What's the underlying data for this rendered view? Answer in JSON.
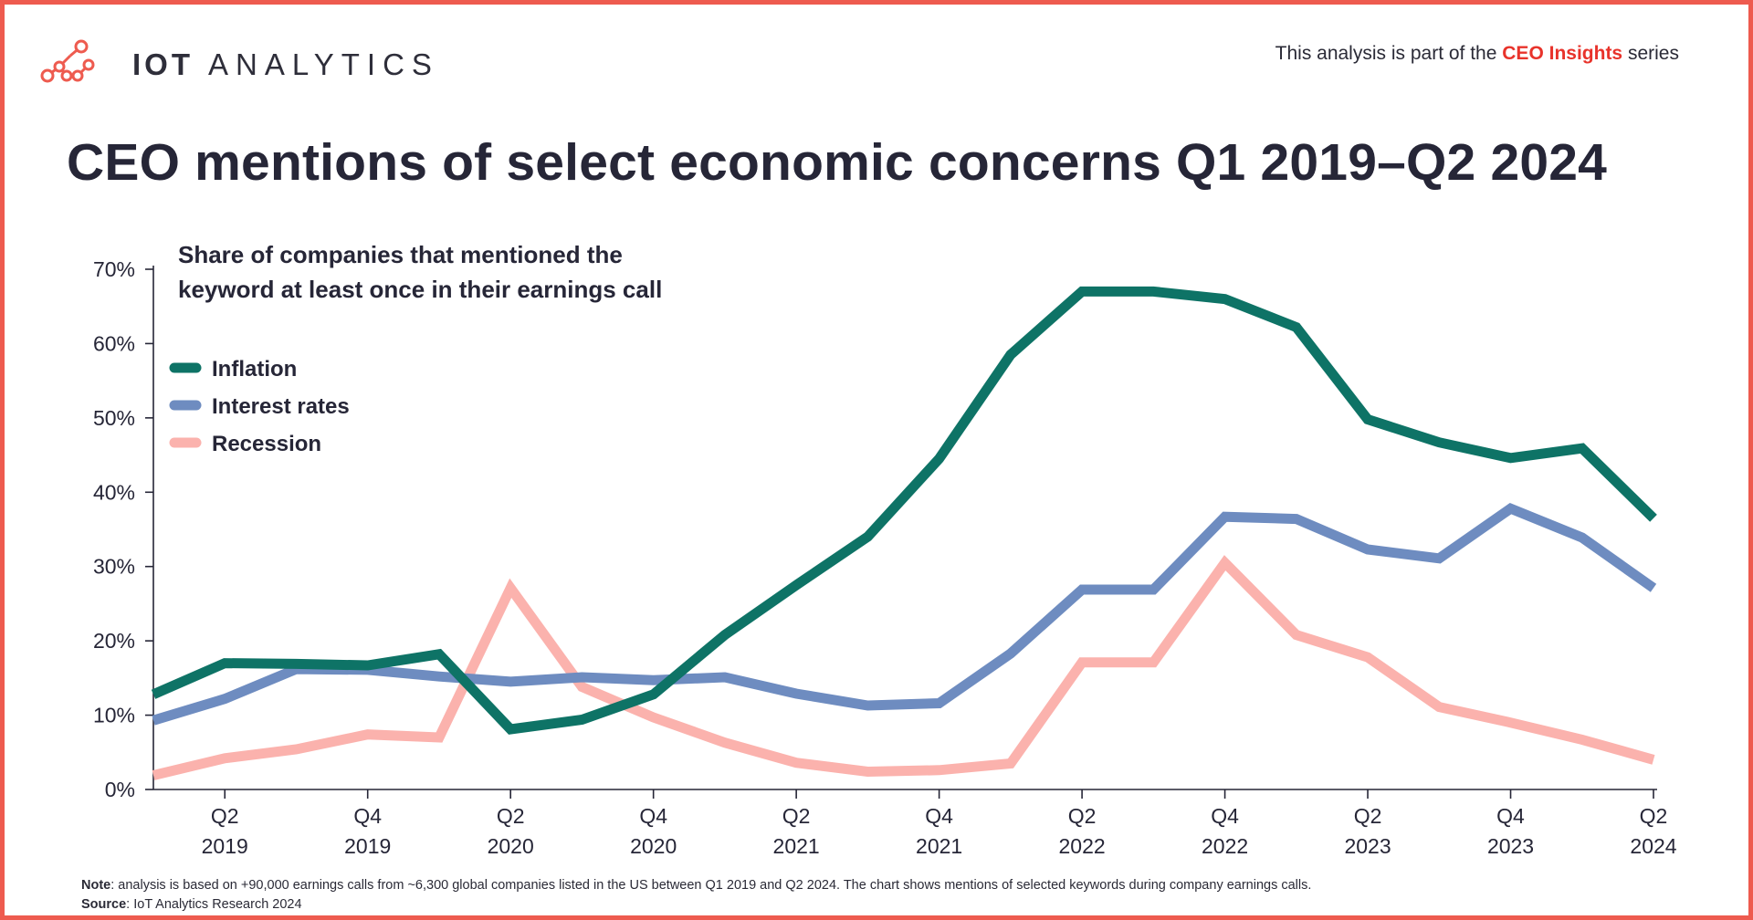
{
  "header": {
    "logo_bold": "IOT",
    "logo_light": "ANALYTICS",
    "series_prefix": "This analysis is part of the",
    "series_highlight": "CEO Insights",
    "series_suffix": "series",
    "title": "CEO mentions of select economic concerns Q1 2019–Q2 2024"
  },
  "footer": {
    "note_label": "Note",
    "note_text": ": analysis is based on +90,000 earnings calls from ~6,300 global companies listed in the US between Q1 2019 and Q2 2024. The chart shows mentions of selected keywords during company earnings calls.",
    "source_label": "Source",
    "source_text": ": IoT Analytics Research 2024"
  },
  "colors": {
    "frame": "#ee5b4f",
    "accent": "#e8332b",
    "inflation": "#0e7366",
    "interest_rates": "#6e8cc0",
    "recession": "#fbb2ad"
  },
  "chart_data": {
    "type": "line",
    "subtitle": [
      "Share of companies that mentioned the",
      "keyword at least once in their earnings call"
    ],
    "ylim": [
      0,
      70
    ],
    "yticks": [
      0,
      10,
      20,
      30,
      40,
      50,
      60,
      70
    ],
    "ytick_labels": [
      "0%",
      "10%",
      "20%",
      "30%",
      "40%",
      "50%",
      "60%",
      "70%"
    ],
    "x": [
      "Q1 2019",
      "Q2 2019",
      "Q3 2019",
      "Q4 2019",
      "Q1 2020",
      "Q2 2020",
      "Q3 2020",
      "Q4 2020",
      "Q1 2021",
      "Q2 2021",
      "Q3 2021",
      "Q4 2021",
      "Q1 2022",
      "Q2 2022",
      "Q3 2022",
      "Q4 2022",
      "Q1 2023",
      "Q2 2023",
      "Q3 2023",
      "Q4 2023",
      "Q1 2024",
      "Q2 2024"
    ],
    "xtick_labels": [
      {
        "index": 1,
        "quarter": "Q2",
        "year": "2019"
      },
      {
        "index": 3,
        "quarter": "Q4",
        "year": "2019"
      },
      {
        "index": 5,
        "quarter": "Q2",
        "year": "2020"
      },
      {
        "index": 7,
        "quarter": "Q4",
        "year": "2020"
      },
      {
        "index": 9,
        "quarter": "Q2",
        "year": "2021"
      },
      {
        "index": 11,
        "quarter": "Q4",
        "year": "2021"
      },
      {
        "index": 13,
        "quarter": "Q2",
        "year": "2022"
      },
      {
        "index": 15,
        "quarter": "Q4",
        "year": "2022"
      },
      {
        "index": 17,
        "quarter": "Q2",
        "year": "2023"
      },
      {
        "index": 19,
        "quarter": "Q4",
        "year": "2023"
      },
      {
        "index": 21,
        "quarter": "Q2",
        "year": "2024"
      }
    ],
    "legend_position": "top-left",
    "series": [
      {
        "key": "inflation",
        "name": "Inflation",
        "color": "#0e7366",
        "values": [
          12.8,
          17.0,
          16.9,
          16.7,
          18.2,
          8.1,
          9.4,
          12.8,
          20.8,
          27.5,
          34.0,
          44.5,
          58.5,
          67.0,
          67.0,
          66.0,
          62.2,
          49.8,
          46.7,
          44.6,
          45.9,
          36.5
        ]
      },
      {
        "key": "interest_rates",
        "name": "Interest rates",
        "color": "#6e8cc0",
        "values": [
          9.3,
          12.2,
          16.2,
          16.1,
          15.2,
          14.5,
          15.1,
          14.7,
          15.1,
          12.9,
          11.3,
          11.6,
          18.3,
          26.9,
          26.9,
          36.7,
          36.4,
          32.3,
          31.1,
          37.8,
          33.9,
          27.1
        ]
      },
      {
        "key": "recession",
        "name": "Recession",
        "color": "#fbb2ad",
        "values": [
          1.9,
          4.2,
          5.4,
          7.4,
          7.0,
          27.1,
          13.8,
          9.7,
          6.3,
          3.6,
          2.4,
          2.6,
          3.5,
          17.1,
          17.1,
          30.5,
          20.8,
          17.8,
          11.1,
          9.0,
          6.7,
          4.0
        ]
      }
    ]
  }
}
